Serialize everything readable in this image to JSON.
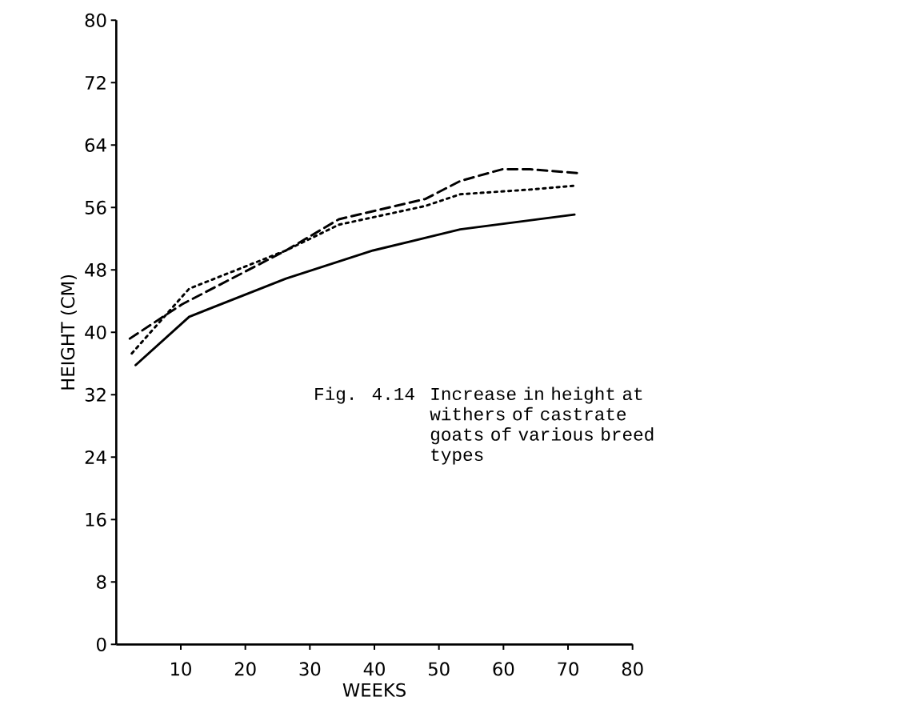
{
  "chart_data": {
    "type": "line",
    "xlabel": "WEEKS",
    "ylabel": "HEIGHT (CM)",
    "annotations": [
      "Fig. 4.14",
      "Increase in height at withers of castrate goats of various breed types"
    ],
    "xlim": [
      0,
      80
    ],
    "ylim": [
      0,
      80
    ],
    "xticks": [
      10,
      20,
      30,
      40,
      50,
      60,
      70,
      80
    ],
    "yticks": [
      0,
      8,
      16,
      24,
      32,
      40,
      48,
      56,
      64,
      72,
      80
    ],
    "grid": false,
    "marker": "none",
    "series": [
      {
        "color": "#000000",
        "line_style": "solid",
        "x": [
          3,
          11.3,
          26.3,
          39.8,
          53.3,
          71
        ],
        "values": [
          35.8,
          42.0,
          46.9,
          50.5,
          53.2,
          55.1
        ]
      },
      {
        "color": "#000000",
        "line_style": "dashed",
        "x": [
          2.1,
          10.2,
          26.3,
          34.5,
          47.9,
          53.3,
          59.8,
          64.1,
          71.7
        ],
        "values": [
          39.2,
          43.6,
          50.5,
          54.5,
          57.1,
          59.4,
          60.9,
          60.9,
          60.4
        ]
      },
      {
        "color": "#000000",
        "line_style": "dotted",
        "x": [
          2.4,
          11.3,
          26.3,
          34.5,
          47.9,
          53.3,
          64.1,
          71
        ],
        "values": [
          37.3,
          45.6,
          50.5,
          53.8,
          56.2,
          57.7,
          58.3,
          58.8
        ]
      }
    ]
  }
}
